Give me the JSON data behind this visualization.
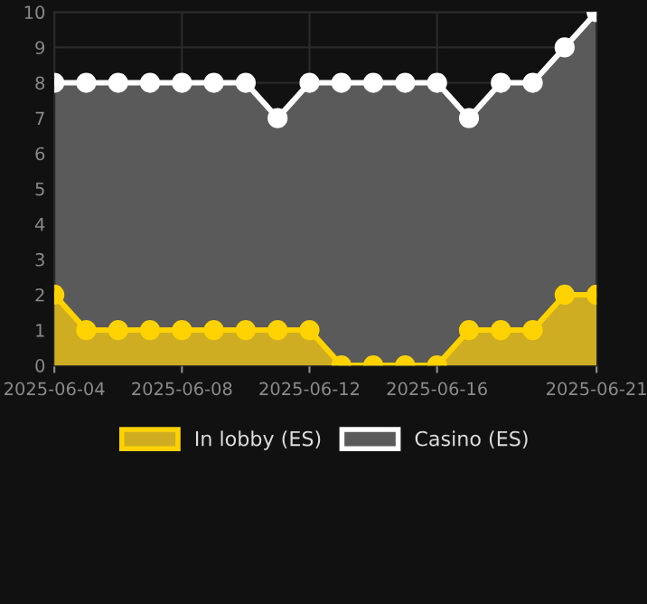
{
  "chart_data": {
    "type": "area",
    "x": [
      "2025-06-04",
      "2025-06-05",
      "2025-06-06",
      "2025-06-07",
      "2025-06-08",
      "2025-06-09",
      "2025-06-10",
      "2025-06-11",
      "2025-06-12",
      "2025-06-13",
      "2025-06-14",
      "2025-06-15",
      "2025-06-16",
      "2025-06-17",
      "2025-06-18",
      "2025-06-19",
      "2025-06-20",
      "2025-06-21"
    ],
    "series": [
      {
        "name": "In lobby (ES)",
        "color": "#ffd200",
        "values": [
          2,
          1,
          1,
          1,
          1,
          1,
          1,
          1,
          1,
          0,
          0,
          0,
          0,
          1,
          1,
          1,
          2,
          2
        ]
      },
      {
        "name": "Casino (ES)",
        "color": "#ffffff",
        "values": [
          8,
          8,
          8,
          8,
          8,
          8,
          8,
          7,
          8,
          8,
          8,
          8,
          8,
          7,
          8,
          8,
          9,
          10
        ]
      }
    ],
    "xlim": [
      "2025-06-04",
      "2025-06-21"
    ],
    "xticks": [
      "2025-06-04",
      "2025-06-08",
      "2025-06-12",
      "2025-06-16",
      "2025-06-21"
    ],
    "ylim": [
      0,
      10
    ],
    "yticks": [
      0,
      1,
      2,
      3,
      4,
      5,
      6,
      7,
      8,
      9,
      10
    ],
    "grid": true,
    "legend": "bottom",
    "marker": "circle",
    "line_style": "solid"
  }
}
